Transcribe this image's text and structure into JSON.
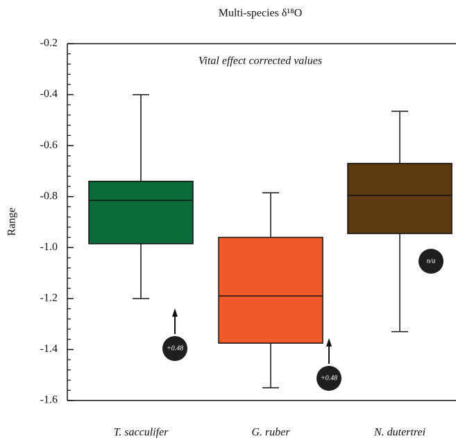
{
  "chart_data": {
    "type": "box",
    "title": "Multi-species δ¹⁸O",
    "subtitle": "Vital effect corrected values",
    "y_label": "Range",
    "categories": [
      "T. sacculifer",
      "G. ruber",
      "N. dutertrei"
    ],
    "colors": [
      "#0b6a3a",
      "#f05a28",
      "#5e3a12"
    ],
    "boxes": [
      {
        "min": -1.2,
        "q1": -0.985,
        "median": -0.815,
        "q3": -0.74,
        "max": -0.4
      },
      {
        "min": -1.55,
        "q1": -1.375,
        "median": -1.19,
        "q3": -0.96,
        "max": -0.785
      },
      {
        "min": -1.33,
        "q1": -0.945,
        "median": -0.795,
        "q3": -0.67,
        "max": -0.465
      }
    ],
    "annotations": [
      "+0.48",
      "+0.48",
      "n/a"
    ],
    "ylim": [
      -1.6,
      -0.2
    ],
    "yticks": [
      {
        "value": -1.6,
        "label": "-1.6"
      },
      {
        "value": -1.4,
        "label": "-1.4"
      },
      {
        "value": -1.2,
        "label": "-1.2"
      },
      {
        "value": -1.0,
        "label": "-1.0"
      },
      {
        "value": -0.8,
        "label": "-0.8"
      },
      {
        "value": -0.6,
        "label": "-0.6"
      },
      {
        "value": -0.4,
        "label": "-0.4"
      },
      {
        "value": -0.2,
        "label": "-0.2"
      }
    ]
  }
}
